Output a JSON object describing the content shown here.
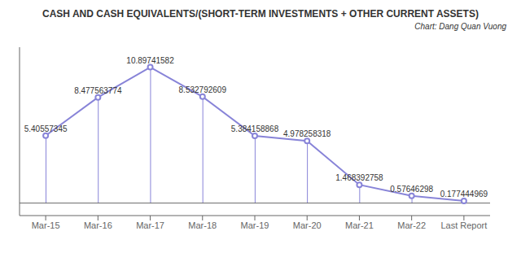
{
  "chart_data": {
    "type": "line",
    "title": "CASH AND CASH EQUIVALENTS/(SHORT-TERM INVESTMENTS + OTHER CURRENT ASSETS)",
    "subtitle": "Chart: Dang Quan Vuong",
    "categories": [
      "Mar-15",
      "Mar-16",
      "Mar-17",
      "Mar-18",
      "Mar-19",
      "Mar-20",
      "Mar-21",
      "Mar-22",
      "Last Report"
    ],
    "values": [
      5.40557345,
      8.477563774,
      10.89741582,
      8.532792609,
      5.384158868,
      4.978258318,
      1.468392758,
      0.57646298,
      0.177444969
    ],
    "ylim": [
      -1.0,
      12.5
    ],
    "data_labels": true,
    "tick_labels": "x",
    "grid": false
  }
}
